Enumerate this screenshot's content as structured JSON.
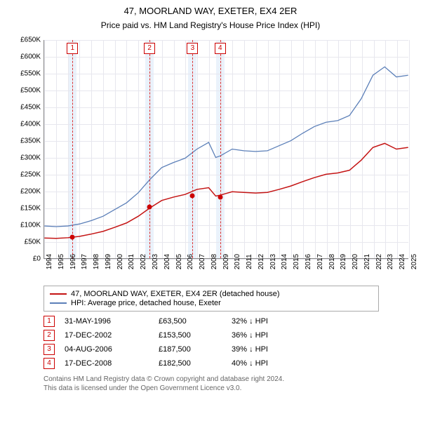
{
  "title": "47, MOORLAND WAY, EXETER, EX4 2ER",
  "subtitle": "Price paid vs. HM Land Registry's House Price Index (HPI)",
  "chart": {
    "type": "line",
    "xlim": [
      1994,
      2025
    ],
    "ylim": [
      0,
      650000
    ],
    "ytick_step": 50000,
    "yticks": [
      "£0",
      "£50K",
      "£100K",
      "£150K",
      "£200K",
      "£250K",
      "£300K",
      "£350K",
      "£400K",
      "£450K",
      "£500K",
      "£550K",
      "£600K",
      "£650K"
    ],
    "xticks": [
      1994,
      1995,
      1996,
      1997,
      1998,
      1999,
      2000,
      2001,
      2002,
      2003,
      2004,
      2005,
      2006,
      2007,
      2008,
      2009,
      2010,
      2011,
      2012,
      2013,
      2014,
      2015,
      2016,
      2017,
      2018,
      2019,
      2020,
      2021,
      2022,
      2023,
      2024,
      2025
    ],
    "grid_color": "#e7e7ee",
    "background_color": "#ffffff",
    "marker_band_color": "#eaf2fb",
    "marker_line_color": "#d33",
    "font_size_title": 13,
    "font_size_axis": 10,
    "series": [
      {
        "name": "hpi",
        "label": "HPI: Average price, detached house, Exeter",
        "color": "#5b7fb8",
        "line_width": 1.3,
        "data": [
          [
            1994,
            96000
          ],
          [
            1995,
            94000
          ],
          [
            1996,
            96000
          ],
          [
            1997,
            102000
          ],
          [
            1998,
            112000
          ],
          [
            1999,
            125000
          ],
          [
            2000,
            145000
          ],
          [
            2001,
            165000
          ],
          [
            2002,
            195000
          ],
          [
            2003,
            235000
          ],
          [
            2004,
            270000
          ],
          [
            2005,
            285000
          ],
          [
            2006,
            298000
          ],
          [
            2007,
            325000
          ],
          [
            2008,
            345000
          ],
          [
            2008.6,
            300000
          ],
          [
            2009,
            305000
          ],
          [
            2010,
            325000
          ],
          [
            2011,
            320000
          ],
          [
            2012,
            318000
          ],
          [
            2013,
            320000
          ],
          [
            2014,
            335000
          ],
          [
            2015,
            350000
          ],
          [
            2016,
            372000
          ],
          [
            2017,
            392000
          ],
          [
            2018,
            405000
          ],
          [
            2019,
            410000
          ],
          [
            2020,
            425000
          ],
          [
            2021,
            475000
          ],
          [
            2022,
            545000
          ],
          [
            2023,
            570000
          ],
          [
            2024,
            540000
          ],
          [
            2025,
            545000
          ]
        ]
      },
      {
        "name": "property",
        "label": "47, MOORLAND WAY, EXETER, EX4 2ER (detached house)",
        "color": "#c41414",
        "line_width": 1.5,
        "data": [
          [
            1994,
            60000
          ],
          [
            1995,
            59000
          ],
          [
            1996,
            61000
          ],
          [
            1997,
            65000
          ],
          [
            1998,
            72000
          ],
          [
            1999,
            80000
          ],
          [
            2000,
            92000
          ],
          [
            2001,
            105000
          ],
          [
            2002,
            125000
          ],
          [
            2003,
            150000
          ],
          [
            2004,
            172000
          ],
          [
            2005,
            182000
          ],
          [
            2006,
            190000
          ],
          [
            2007,
            205000
          ],
          [
            2008,
            210000
          ],
          [
            2008.6,
            185000
          ],
          [
            2009,
            188000
          ],
          [
            2010,
            198000
          ],
          [
            2011,
            196000
          ],
          [
            2012,
            194000
          ],
          [
            2013,
            196000
          ],
          [
            2014,
            205000
          ],
          [
            2015,
            215000
          ],
          [
            2016,
            228000
          ],
          [
            2017,
            240000
          ],
          [
            2018,
            250000
          ],
          [
            2019,
            254000
          ],
          [
            2020,
            262000
          ],
          [
            2021,
            292000
          ],
          [
            2022,
            330000
          ],
          [
            2023,
            342000
          ],
          [
            2024,
            325000
          ],
          [
            2025,
            330000
          ]
        ]
      }
    ],
    "markers": [
      {
        "num": "1",
        "x": 1996.4,
        "band_width": 0.7
      },
      {
        "num": "2",
        "x": 2002.95,
        "band_width": 0.7
      },
      {
        "num": "3",
        "x": 2006.6,
        "band_width": 0.7
      },
      {
        "num": "4",
        "x": 2008.95,
        "band_width": 0.7
      }
    ],
    "sale_points": [
      {
        "x": 1996.4,
        "y": 63500
      },
      {
        "x": 2002.95,
        "y": 153500
      },
      {
        "x": 2006.6,
        "y": 187500
      },
      {
        "x": 2008.95,
        "y": 182500
      }
    ]
  },
  "legend": {
    "items": [
      {
        "color": "#c41414",
        "label": "47, MOORLAND WAY, EXETER, EX4 2ER (detached house)"
      },
      {
        "color": "#5b7fb8",
        "label": "HPI: Average price, detached house, Exeter"
      }
    ]
  },
  "events": [
    {
      "num": "1",
      "date": "31-MAY-1996",
      "price": "£63,500",
      "delta": "32% ↓ HPI"
    },
    {
      "num": "2",
      "date": "17-DEC-2002",
      "price": "£153,500",
      "delta": "36% ↓ HPI"
    },
    {
      "num": "3",
      "date": "04-AUG-2006",
      "price": "£187,500",
      "delta": "39% ↓ HPI"
    },
    {
      "num": "4",
      "date": "17-DEC-2008",
      "price": "£182,500",
      "delta": "40% ↓ HPI"
    }
  ],
  "footer": {
    "line1": "Contains HM Land Registry data © Crown copyright and database right 2024.",
    "line2": "This data is licensed under the Open Government Licence v3.0."
  }
}
